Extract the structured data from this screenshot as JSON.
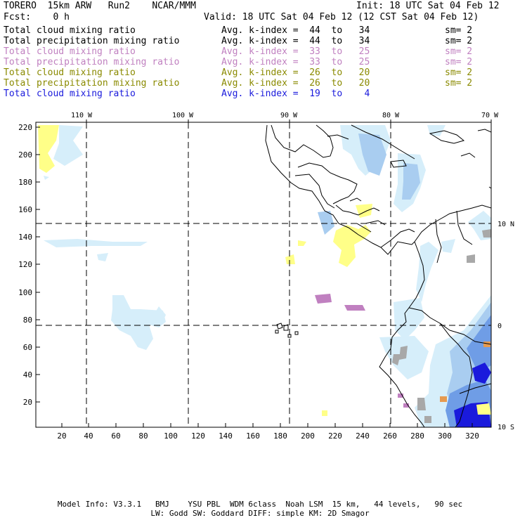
{
  "header": {
    "model": "TORERO  15km ARW   Run2    NCAR/MMM",
    "init": "Init: 18 UTC Sat 04 Feb 12",
    "fcst": "Fcst:    0 h",
    "valid": "Valid: 18 UTC Sat 04 Feb 12 (12 CST Sat 04 Feb 12)"
  },
  "legend": [
    {
      "field": "Total cloud mixing ratio",
      "kindex": "Avg. k-index =  44  to   34",
      "sm": "sm= 2",
      "color": "#000000"
    },
    {
      "field": "Total precipitation mixing ratio",
      "kindex": "Avg. k-index =  44  to   34",
      "sm": "sm= 2",
      "color": "#000000"
    },
    {
      "field": "Total cloud mixing ratio",
      "kindex": "Avg. k-index =  33  to   25",
      "sm": "sm= 2",
      "color": "#c080c0"
    },
    {
      "field": "Total precipitation mixing ratio",
      "kindex": "Avg. k-index =  33  to   25",
      "sm": "sm= 2",
      "color": "#c080c0"
    },
    {
      "field": "Total cloud mixing ratio",
      "kindex": "Avg. k-index =  26  to   20",
      "sm": "sm= 2",
      "color": "#8a8a00"
    },
    {
      "field": "Total precipitation mixing ratio",
      "kindex": "Avg. k-index =  26  to   20",
      "sm": "sm= 2",
      "color": "#8a8a00"
    },
    {
      "field": "Total cloud mixing ratio",
      "kindex": "Avg. k-index =  19  to    4",
      "sm": "",
      "color": "#1a1adc"
    }
  ],
  "map": {
    "top_lon_labels": [
      "110 W",
      "100 W",
      "90 W",
      "80 W",
      "70 W"
    ],
    "right_lat_labels": [
      "10 N",
      "0",
      "10 S"
    ],
    "left_y_ticks": [
      "220",
      "200",
      "180",
      "160",
      "140",
      "120",
      "100",
      "80",
      "60",
      "40",
      "20"
    ],
    "bottom_x_ticks": [
      "20",
      "40",
      "60",
      "80",
      "100",
      "120",
      "140",
      "160",
      "180",
      "200",
      "220",
      "240",
      "260",
      "280",
      "300",
      "320"
    ]
  },
  "footer": {
    "line1": "Model Info: V3.3.1   BMJ    YSU PBL  WDM 6class  Noah LSM  15 km,   44 levels,   90 sec",
    "line2": "LW: Godd SW: Goddard DIFF: simple KM: 2D Smagor"
  },
  "colors": {
    "light_blue": "#d6eefa",
    "mid_blue": "#a9cdf0",
    "blue": "#6f9de6",
    "deep_blue": "#1a1adc",
    "yellow": "#ffff88",
    "purple": "#c080c0",
    "gray": "#a8a8a8",
    "orange": "#e69a50"
  }
}
